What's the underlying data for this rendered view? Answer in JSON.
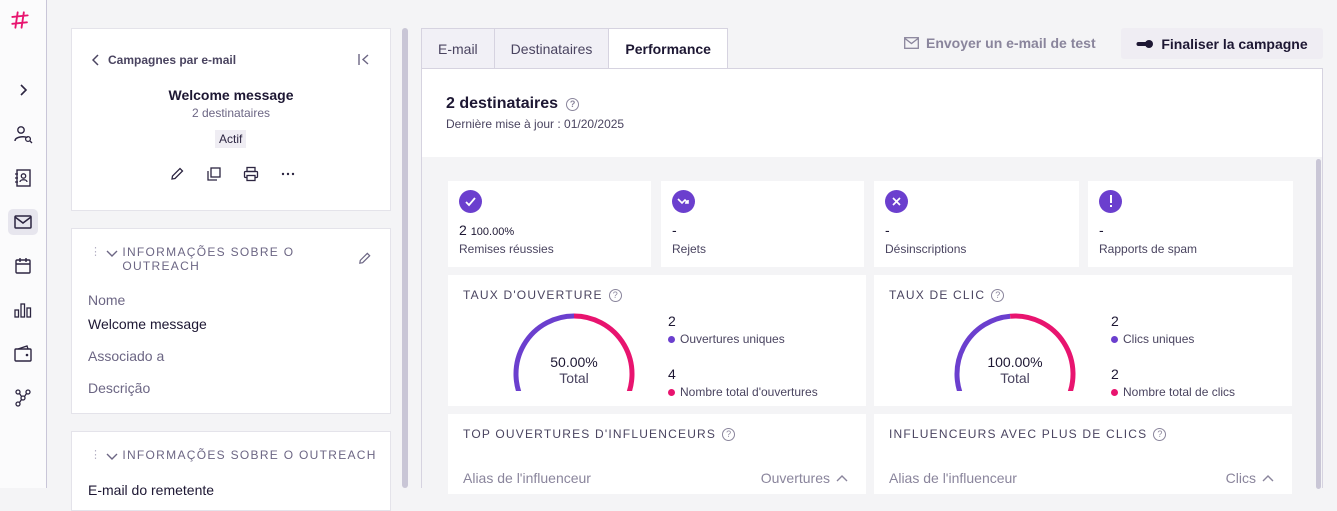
{
  "rail": {
    "logo": "hash-logo-icon",
    "items": [
      "chevron-right-icon",
      "contacts-search-icon",
      "address-book-icon",
      "mail-icon",
      "calendar-icon",
      "bar-chart-icon",
      "wallet-icon",
      "workflow-icon"
    ],
    "active": "mail-icon"
  },
  "campaign": {
    "back_label": "Campagnes par e-mail",
    "title": "Welcome message",
    "recipients": "2 destinataires",
    "status": "Actif"
  },
  "section1": {
    "title_line1": "INFORMAÇÕES SOBRE O",
    "title_line2": "OUTREACH",
    "fields": [
      {
        "label": "Nome",
        "value": "Welcome message"
      },
      {
        "label": "Associado a"
      },
      {
        "label": "Descrição"
      }
    ]
  },
  "section2": {
    "title": "INFORMAÇÕES SOBRE O OUTREACH",
    "field_label": "E-mail do remetente"
  },
  "tabs": [
    "E-mail",
    "Destinataires",
    "Performance"
  ],
  "active_tab": "Performance",
  "header_actions": {
    "test_email": "Envoyer un e-mail de test",
    "finalize": "Finaliser la campagne"
  },
  "performance": {
    "title": "2 destinataires",
    "updated": "Dernière mise à jour : 01/20/2025",
    "stats": [
      {
        "icon": "check-icon",
        "value": "2",
        "percent": "100.00%",
        "label": "Remises réussies"
      },
      {
        "icon": "bounce-icon",
        "value": "-",
        "label": "Rejets"
      },
      {
        "icon": "x-icon",
        "value": "-",
        "label": "Désinscriptions"
      },
      {
        "icon": "alert-icon",
        "value": "-",
        "label": "Rapports de spam"
      }
    ],
    "open_rate": {
      "title": "TAUX D'OUVERTURE",
      "percent": "50.00%",
      "total_label": "Total",
      "value_fraction": 0.5,
      "unique_value": "2",
      "unique_label": "Ouvertures uniques",
      "total_value": "4",
      "total_metric_label": "Nombre total d'ouvertures"
    },
    "click_rate": {
      "title": "TAUX DE CLIC",
      "percent": "100.00%",
      "total_label": "Total",
      "value_fraction": 1.0,
      "unique_value": "2",
      "unique_label": "Clics uniques",
      "total_value": "2",
      "total_metric_label": "Nombre total de clics"
    },
    "top_opens": {
      "title": "TOP OUVERTURES D'INFLUENCEURS",
      "col_left": "Alias de l'influenceur",
      "col_right": "Ouvertures"
    },
    "top_clicks": {
      "title": "INFLUENCEURS AVEC PLUS DE CLICS",
      "col_left": "Alias de l'influenceur",
      "col_right": "Clics"
    }
  },
  "colors": {
    "purple": "#6b3fce",
    "pink": "#e8146f",
    "logo": "#e8146f"
  }
}
